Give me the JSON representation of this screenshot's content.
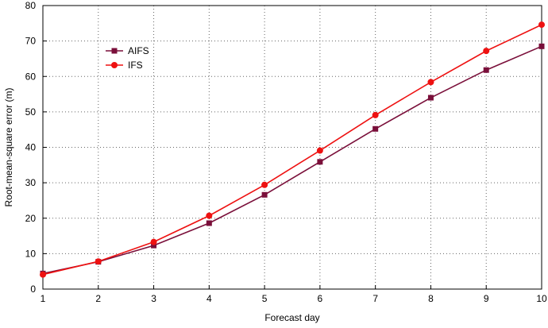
{
  "chart_data": {
    "type": "line",
    "xlabel": "Forecast day",
    "ylabel": "Root-mean-square error (m)",
    "x": [
      1,
      2,
      3,
      4,
      5,
      6,
      7,
      8,
      9,
      10
    ],
    "xlim": [
      1,
      10
    ],
    "ylim": [
      0,
      80
    ],
    "xticks": [
      1,
      2,
      3,
      4,
      5,
      6,
      7,
      8,
      9,
      10
    ],
    "yticks": [
      0,
      10,
      20,
      30,
      40,
      50,
      60,
      70,
      80
    ],
    "grid": true,
    "grid_style": "dotted",
    "legend_position": "upper-left",
    "series": [
      {
        "name": "AIFS",
        "color": "#7a0f3a",
        "marker": "square",
        "values": [
          4.4,
          7.7,
          12.3,
          18.6,
          26.6,
          35.9,
          45.2,
          54.0,
          61.8,
          68.5
        ]
      },
      {
        "name": "IFS",
        "color": "#ee1111",
        "marker": "circle",
        "values": [
          4.1,
          7.8,
          13.3,
          20.7,
          29.4,
          39.1,
          49.1,
          58.4,
          67.2,
          74.6
        ]
      }
    ]
  }
}
